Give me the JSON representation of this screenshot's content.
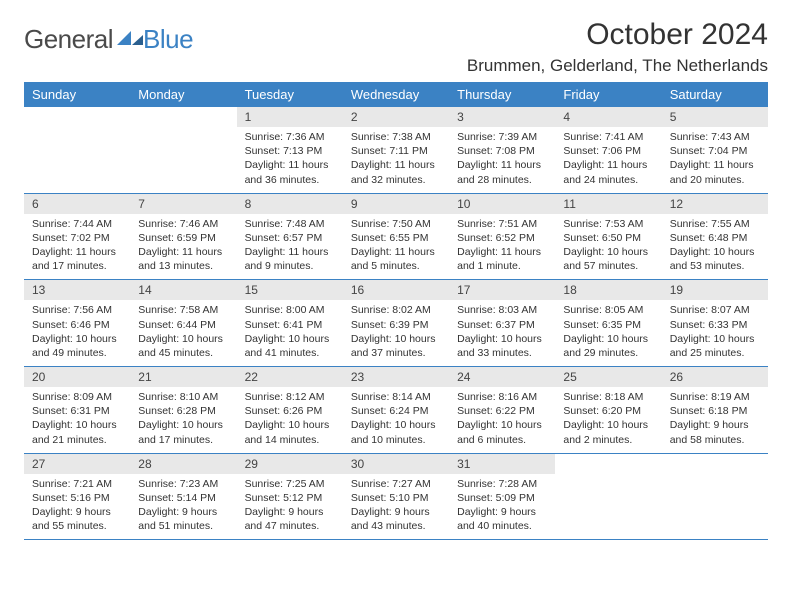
{
  "logo": {
    "general": "General",
    "blue": "Blue",
    "icon_color": "#3b82c4"
  },
  "title": "October 2024",
  "location": "Brummen, Gelderland, The Netherlands",
  "weekdays": [
    "Sunday",
    "Monday",
    "Tuesday",
    "Wednesday",
    "Thursday",
    "Friday",
    "Saturday"
  ],
  "colors": {
    "header_bg": "#3b82c4",
    "header_text": "#ffffff",
    "daynum_bg": "#e8e8e8",
    "border": "#3b82c4",
    "text": "#333333"
  },
  "weeks": [
    [
      {
        "blank": true
      },
      {
        "blank": true
      },
      {
        "n": "1",
        "sunrise": "Sunrise: 7:36 AM",
        "sunset": "Sunset: 7:13 PM",
        "daylight": "Daylight: 11 hours and 36 minutes."
      },
      {
        "n": "2",
        "sunrise": "Sunrise: 7:38 AM",
        "sunset": "Sunset: 7:11 PM",
        "daylight": "Daylight: 11 hours and 32 minutes."
      },
      {
        "n": "3",
        "sunrise": "Sunrise: 7:39 AM",
        "sunset": "Sunset: 7:08 PM",
        "daylight": "Daylight: 11 hours and 28 minutes."
      },
      {
        "n": "4",
        "sunrise": "Sunrise: 7:41 AM",
        "sunset": "Sunset: 7:06 PM",
        "daylight": "Daylight: 11 hours and 24 minutes."
      },
      {
        "n": "5",
        "sunrise": "Sunrise: 7:43 AM",
        "sunset": "Sunset: 7:04 PM",
        "daylight": "Daylight: 11 hours and 20 minutes."
      }
    ],
    [
      {
        "n": "6",
        "sunrise": "Sunrise: 7:44 AM",
        "sunset": "Sunset: 7:02 PM",
        "daylight": "Daylight: 11 hours and 17 minutes."
      },
      {
        "n": "7",
        "sunrise": "Sunrise: 7:46 AM",
        "sunset": "Sunset: 6:59 PM",
        "daylight": "Daylight: 11 hours and 13 minutes."
      },
      {
        "n": "8",
        "sunrise": "Sunrise: 7:48 AM",
        "sunset": "Sunset: 6:57 PM",
        "daylight": "Daylight: 11 hours and 9 minutes."
      },
      {
        "n": "9",
        "sunrise": "Sunrise: 7:50 AM",
        "sunset": "Sunset: 6:55 PM",
        "daylight": "Daylight: 11 hours and 5 minutes."
      },
      {
        "n": "10",
        "sunrise": "Sunrise: 7:51 AM",
        "sunset": "Sunset: 6:52 PM",
        "daylight": "Daylight: 11 hours and 1 minute."
      },
      {
        "n": "11",
        "sunrise": "Sunrise: 7:53 AM",
        "sunset": "Sunset: 6:50 PM",
        "daylight": "Daylight: 10 hours and 57 minutes."
      },
      {
        "n": "12",
        "sunrise": "Sunrise: 7:55 AM",
        "sunset": "Sunset: 6:48 PM",
        "daylight": "Daylight: 10 hours and 53 minutes."
      }
    ],
    [
      {
        "n": "13",
        "sunrise": "Sunrise: 7:56 AM",
        "sunset": "Sunset: 6:46 PM",
        "daylight": "Daylight: 10 hours and 49 minutes."
      },
      {
        "n": "14",
        "sunrise": "Sunrise: 7:58 AM",
        "sunset": "Sunset: 6:44 PM",
        "daylight": "Daylight: 10 hours and 45 minutes."
      },
      {
        "n": "15",
        "sunrise": "Sunrise: 8:00 AM",
        "sunset": "Sunset: 6:41 PM",
        "daylight": "Daylight: 10 hours and 41 minutes."
      },
      {
        "n": "16",
        "sunrise": "Sunrise: 8:02 AM",
        "sunset": "Sunset: 6:39 PM",
        "daylight": "Daylight: 10 hours and 37 minutes."
      },
      {
        "n": "17",
        "sunrise": "Sunrise: 8:03 AM",
        "sunset": "Sunset: 6:37 PM",
        "daylight": "Daylight: 10 hours and 33 minutes."
      },
      {
        "n": "18",
        "sunrise": "Sunrise: 8:05 AM",
        "sunset": "Sunset: 6:35 PM",
        "daylight": "Daylight: 10 hours and 29 minutes."
      },
      {
        "n": "19",
        "sunrise": "Sunrise: 8:07 AM",
        "sunset": "Sunset: 6:33 PM",
        "daylight": "Daylight: 10 hours and 25 minutes."
      }
    ],
    [
      {
        "n": "20",
        "sunrise": "Sunrise: 8:09 AM",
        "sunset": "Sunset: 6:31 PM",
        "daylight": "Daylight: 10 hours and 21 minutes."
      },
      {
        "n": "21",
        "sunrise": "Sunrise: 8:10 AM",
        "sunset": "Sunset: 6:28 PM",
        "daylight": "Daylight: 10 hours and 17 minutes."
      },
      {
        "n": "22",
        "sunrise": "Sunrise: 8:12 AM",
        "sunset": "Sunset: 6:26 PM",
        "daylight": "Daylight: 10 hours and 14 minutes."
      },
      {
        "n": "23",
        "sunrise": "Sunrise: 8:14 AM",
        "sunset": "Sunset: 6:24 PM",
        "daylight": "Daylight: 10 hours and 10 minutes."
      },
      {
        "n": "24",
        "sunrise": "Sunrise: 8:16 AM",
        "sunset": "Sunset: 6:22 PM",
        "daylight": "Daylight: 10 hours and 6 minutes."
      },
      {
        "n": "25",
        "sunrise": "Sunrise: 8:18 AM",
        "sunset": "Sunset: 6:20 PM",
        "daylight": "Daylight: 10 hours and 2 minutes."
      },
      {
        "n": "26",
        "sunrise": "Sunrise: 8:19 AM",
        "sunset": "Sunset: 6:18 PM",
        "daylight": "Daylight: 9 hours and 58 minutes."
      }
    ],
    [
      {
        "n": "27",
        "sunrise": "Sunrise: 7:21 AM",
        "sunset": "Sunset: 5:16 PM",
        "daylight": "Daylight: 9 hours and 55 minutes."
      },
      {
        "n": "28",
        "sunrise": "Sunrise: 7:23 AM",
        "sunset": "Sunset: 5:14 PM",
        "daylight": "Daylight: 9 hours and 51 minutes."
      },
      {
        "n": "29",
        "sunrise": "Sunrise: 7:25 AM",
        "sunset": "Sunset: 5:12 PM",
        "daylight": "Daylight: 9 hours and 47 minutes."
      },
      {
        "n": "30",
        "sunrise": "Sunrise: 7:27 AM",
        "sunset": "Sunset: 5:10 PM",
        "daylight": "Daylight: 9 hours and 43 minutes."
      },
      {
        "n": "31",
        "sunrise": "Sunrise: 7:28 AM",
        "sunset": "Sunset: 5:09 PM",
        "daylight": "Daylight: 9 hours and 40 minutes."
      },
      {
        "blank": true
      },
      {
        "blank": true
      }
    ]
  ]
}
